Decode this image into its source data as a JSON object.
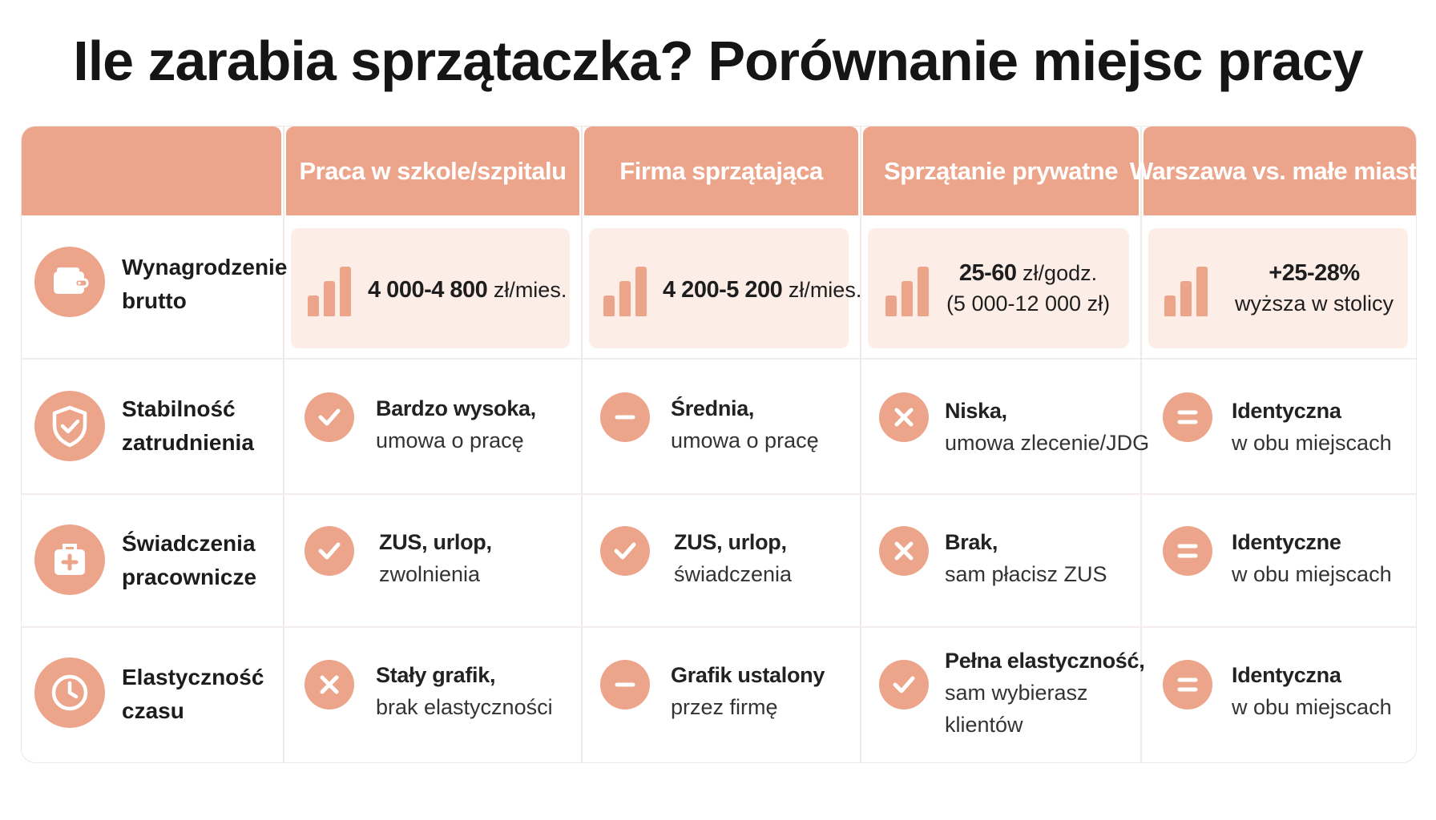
{
  "title": "Ile zarabia sprzątaczka? Porównanie miejsc pracy",
  "colors": {
    "accent": "#eca58b",
    "accent_light": "#fcede7",
    "text": "#1e1e1e"
  },
  "columns": [
    "Praca w szkole/szpitalu",
    "Firma sprzątająca",
    "Sprzątanie prywatne",
    "Warszawa vs. małe miasto"
  ],
  "rows": [
    {
      "label_line1": "Wynagrodzenie",
      "label_line2": "brutto",
      "icon": "wallet-icon"
    },
    {
      "label_line1": "Stabilność",
      "label_line2": "zatrudnienia",
      "icon": "shield-check-icon"
    },
    {
      "label_line1": "Świadczenia",
      "label_line2": "pracownicze",
      "icon": "medical-kit-icon"
    },
    {
      "label_line1": "Elastyczność",
      "label_line2": "czasu",
      "icon": "clock-icon"
    }
  ],
  "salary": [
    {
      "strong": "4 000-4 800",
      "unit": " zł/mies.",
      "line2": "",
      "icon": "bar-chart-icon"
    },
    {
      "strong": "4 200-5 200",
      "unit": " zł/mies.",
      "line2": "",
      "icon": "bar-chart-icon"
    },
    {
      "strong": "25-60",
      "unit": " zł/godz.",
      "line2": "(5 000-12 000 zł)",
      "icon": "bar-chart-icon"
    },
    {
      "strong": "+25-28%",
      "unit": "",
      "line2": "wyższa w stolicy",
      "icon": "bar-chart-icon"
    }
  ],
  "stability": [
    {
      "status": "check-icon",
      "main": "Bardzo wysoka,",
      "sub": "umowa o pracę"
    },
    {
      "status": "minus-icon",
      "main": "Średnia,",
      "sub": "umowa o pracę"
    },
    {
      "status": "cross-icon",
      "main": "Niska,",
      "sub": "umowa zlecenie/JDG"
    },
    {
      "status": "equals-icon",
      "main": "Identyczna",
      "sub": "w obu miejscach"
    }
  ],
  "benefits": [
    {
      "status": "check-icon",
      "main": "ZUS, urlop,",
      "sub": "zwolnienia"
    },
    {
      "status": "check-icon",
      "main": "ZUS, urlop,",
      "sub": "świadczenia"
    },
    {
      "status": "cross-icon",
      "main": "Brak,",
      "sub": "sam płacisz ZUS"
    },
    {
      "status": "equals-icon",
      "main": "Identyczne",
      "sub": "w obu miejscach"
    }
  ],
  "flexibility": [
    {
      "status": "cross-icon",
      "main": "Stały grafik,",
      "sub": "brak elastyczności",
      "sub2": ""
    },
    {
      "status": "minus-icon",
      "main": "Grafik ustalony",
      "sub": "przez firmę",
      "sub2": ""
    },
    {
      "status": "check-icon",
      "main": "Pełna elastyczność,",
      "sub": "sam wybierasz",
      "sub2": "klientów"
    },
    {
      "status": "equals-icon",
      "main": "Identyczna",
      "sub": "w obu miejscach",
      "sub2": ""
    }
  ]
}
